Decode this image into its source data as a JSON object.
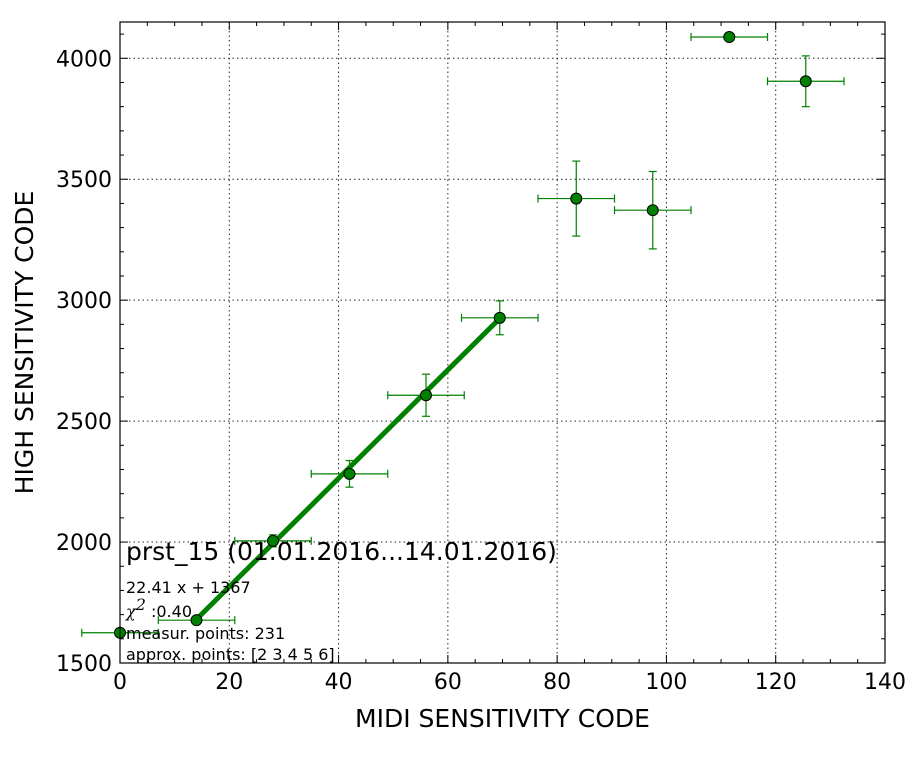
{
  "chart_data": {
    "type": "scatter",
    "title": "",
    "xlabel": "MIDI SENSITIVITY CODE",
    "ylabel": "HIGH SENSITIVITY CODE",
    "xlim": [
      0,
      140
    ],
    "ylim": [
      1500,
      4150
    ],
    "xticks": [
      0,
      20,
      40,
      60,
      80,
      100,
      120,
      140
    ],
    "yticks": [
      1500,
      2000,
      2500,
      3000,
      3500,
      4000
    ],
    "xtick_labels": [
      "0",
      "20",
      "40",
      "60",
      "80",
      "100",
      "120",
      "140"
    ],
    "ytick_labels": [
      "1500",
      "2000",
      "2500",
      "3000",
      "3500",
      "4000"
    ],
    "grid": true,
    "marker_color": "#008000",
    "fit_color": "#008000",
    "points": [
      {
        "x": 0,
        "y": 1625,
        "xerr": 7,
        "yerr": 15
      },
      {
        "x": 14,
        "y": 1677,
        "xerr": 7,
        "yerr": 12
      },
      {
        "x": 28,
        "y": 2005,
        "xerr": 7,
        "yerr": 25
      },
      {
        "x": 42,
        "y": 2282,
        "xerr": 7,
        "yerr": 55
      },
      {
        "x": 56,
        "y": 2607,
        "xerr": 7,
        "yerr": 87
      },
      {
        "x": 69.5,
        "y": 2927,
        "xerr": 7,
        "yerr": 70
      },
      {
        "x": 83.5,
        "y": 3420,
        "xerr": 7,
        "yerr": 155
      },
      {
        "x": 97.5,
        "y": 3372,
        "xerr": 7,
        "yerr": 160
      },
      {
        "x": 111.5,
        "y": 4088,
        "xerr": 7,
        "yerr": 0
      },
      {
        "x": 125.5,
        "y": 3905,
        "xerr": 7,
        "yerr": 105
      }
    ],
    "fit": {
      "x_start": 14,
      "x_end": 69.5,
      "slope": 22.41,
      "intercept": 1367
    },
    "annotations": {
      "header": "prst_15 (01.01.2016...14.01.2016)",
      "equation": "22.41 x + 1367",
      "chi_symbol": "χ",
      "chi_sup": "2",
      "chi_value": " :0.40",
      "measur_points": "measur. points: 231",
      "approx_points": "approx. points: [2 3 4 5 6]"
    }
  }
}
